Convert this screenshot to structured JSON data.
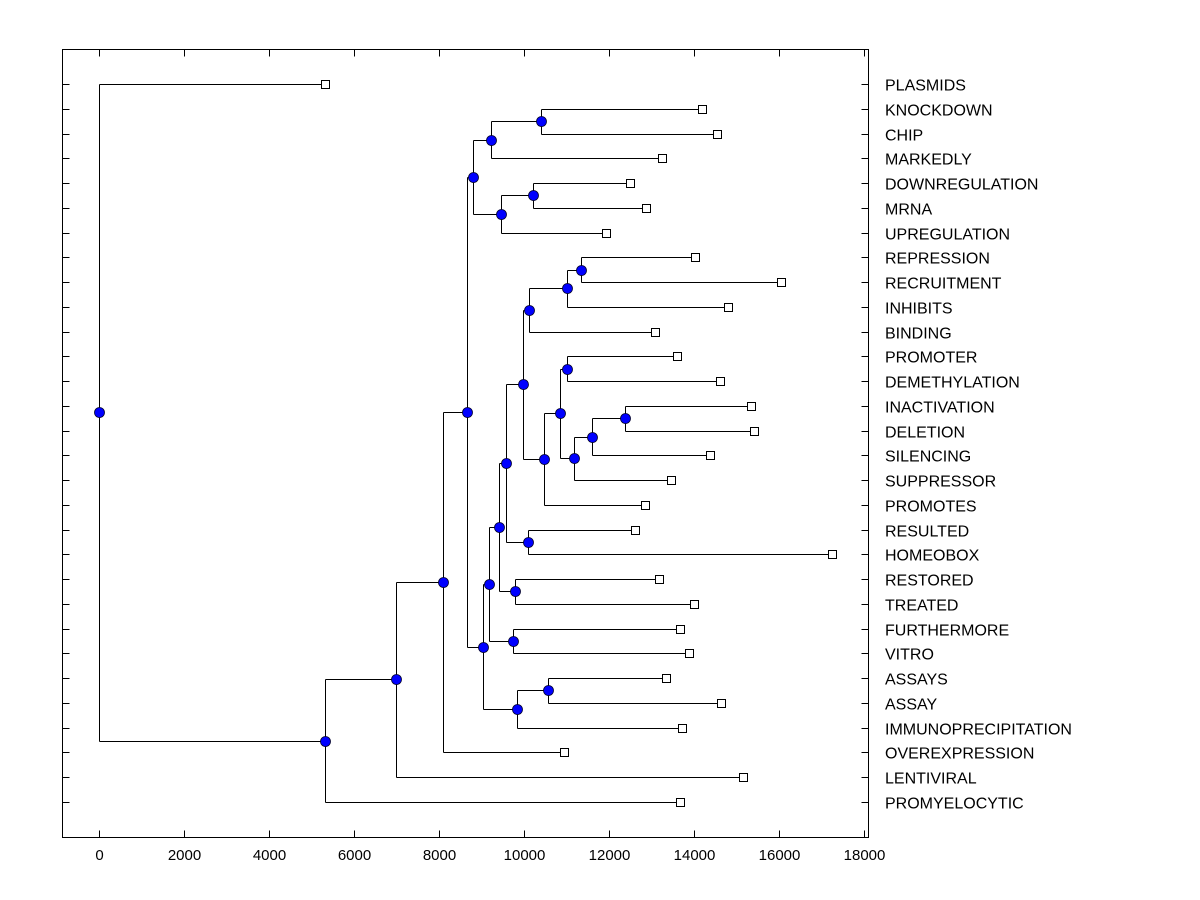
{
  "chart_data": {
    "type": "dendrogram",
    "title": "",
    "xlabel": "",
    "ylabel": "",
    "xlim": [
      -850,
      18100
    ],
    "x_ticks": [
      0,
      2000,
      4000,
      6000,
      8000,
      10000,
      12000,
      14000,
      16000,
      18000
    ],
    "x_tick_labels": [
      "0",
      "2000",
      "4000",
      "6000",
      "8000",
      "10000",
      "12000",
      "14000",
      "16000",
      "18000"
    ],
    "grid": false,
    "leaf_order": [
      "PLASMIDS",
      "KNOCKDOWN",
      "CHIP",
      "MARKEDLY",
      "DOWNREGULATION",
      "MRNA",
      "UPREGULATION",
      "REPRESSION",
      "RECRUITMENT",
      "INHIBITS",
      "BINDING",
      "PROMOTER",
      "DEMETHYLATION",
      "INACTIVATION",
      "DELETION",
      "SILENCING",
      "SUPPRESSOR",
      "PROMOTES",
      "RESULTED",
      "HOMEOBOX",
      "RESTORED",
      "TREATED",
      "FURTHERMORE",
      "VITRO",
      "ASSAYS",
      "ASSAY",
      "IMMUNOPRECIPITATION",
      "OVEREXPRESSION",
      "LENTIVIRAL",
      "PROMYELOCYTIC"
    ],
    "node_color": "#0000ff",
    "leaf_marker_color": "#ffffff",
    "line_color": "#000000",
    "tree": {
      "x": 0,
      "children": [
        {
          "leaf": "PLASMIDS",
          "x": 5325
        },
        {
          "x": 5325,
          "children": [
            {
              "x": 7000,
              "children": [
                {
                  "x": 8100,
                  "children": [
                    {
                      "x": 8665,
                      "children": [
                        {
                          "x": 8805,
                          "children": [
                            {
                              "x": 9230,
                              "children": [
                                {
                                  "x": 10405,
                                  "children": [
                                    {
                                      "leaf": "KNOCKDOWN",
                                      "x": 14195
                                    },
                                    {
                                      "leaf": "CHIP",
                                      "x": 14545
                                    }
                                  ]
                                },
                                {
                                  "leaf": "MARKEDLY",
                                  "x": 13255
                                }
                              ]
                            },
                            {
                              "x": 9465,
                              "children": [
                                {
                                  "x": 10215,
                                  "children": [
                                    {
                                      "leaf": "DOWNREGULATION",
                                      "x": 12500
                                    },
                                    {
                                      "leaf": "MRNA",
                                      "x": 12880
                                    }
                                  ]
                                },
                                {
                                  "leaf": "UPREGULATION",
                                  "x": 11935
                                }
                              ]
                            }
                          ]
                        },
                        {
                          "x": 9040,
                          "children": [
                            {
                              "x": 9180,
                              "children": [
                                {
                                  "x": 9420,
                                  "children": [
                                    {
                                      "x": 9585,
                                      "children": [
                                        {
                                          "x": 9985,
                                          "children": [
                                            {
                                              "x": 10125,
                                              "children": [
                                                {
                                                  "x": 11020,
                                                  "children": [
                                                    {
                                                      "x": 11350,
                                                      "children": [
                                                        {
                                                          "leaf": "REPRESSION",
                                                          "x": 14035
                                                        },
                                                        {
                                                          "leaf": "RECRUITMENT",
                                                          "x": 16055
                                                        }
                                                      ]
                                                    },
                                                    {
                                                      "leaf": "INHIBITS",
                                                      "x": 14810
                                                    }
                                                  ]
                                                },
                                                {
                                                  "leaf": "BINDING",
                                                  "x": 13090
                                                }
                                              ]
                                            },
                                            {
                                              "x": 10480,
                                              "children": [
                                                {
                                                  "x": 10855,
                                                  "children": [
                                                    {
                                                      "x": 11020,
                                                      "children": [
                                                        {
                                                          "leaf": "PROMOTER",
                                                          "x": 13610
                                                        },
                                                        {
                                                          "leaf": "DEMETHYLATION",
                                                          "x": 14620
                                                        }
                                                      ]
                                                    },
                                                    {
                                                      "x": 11185,
                                                      "children": [
                                                        {
                                                          "x": 11605,
                                                          "children": [
                                                            {
                                                              "x": 12385,
                                                              "children": [
                                                                {
                                                                  "leaf": "INACTIVATION",
                                                                  "x": 15350
                                                                },
                                                                {
                                                                  "leaf": "DELETION",
                                                                  "x": 15420
                                                                }
                                                              ]
                                                            },
                                                            {
                                                              "leaf": "SILENCING",
                                                              "x": 14385
                                                            }
                                                          ]
                                                        },
                                                        {
                                                          "leaf": "SUPPRESSOR",
                                                          "x": 13465
                                                        }
                                                      ]
                                                    }
                                                  ]
                                                },
                                                {
                                                  "leaf": "PROMOTES",
                                                  "x": 12855
                                                }
                                              ]
                                            }
                                          ]
                                        },
                                        {
                                          "x": 10100,
                                          "children": [
                                            {
                                              "leaf": "RESULTED",
                                              "x": 12620
                                            },
                                            {
                                              "leaf": "HOMEOBOX",
                                              "x": 17255
                                            }
                                          ]
                                        }
                                      ]
                                    },
                                    {
                                      "x": 9795,
                                      "children": [
                                        {
                                          "leaf": "RESTORED",
                                          "x": 13185
                                        },
                                        {
                                          "leaf": "TREATED",
                                          "x": 14005
                                        }
                                      ]
                                    }
                                  ]
                                },
                                {
                                  "x": 9745,
                                  "children": [
                                    {
                                      "leaf": "FURTHERMORE",
                                      "x": 13680
                                    },
                                    {
                                      "leaf": "VITRO",
                                      "x": 13890
                                    }
                                  ]
                                }
                              ]
                            },
                            {
                              "x": 9840,
                              "children": [
                                {
                                  "x": 10570,
                                  "children": [
                                    {
                                      "leaf": "ASSAYS",
                                      "x": 13355
                                    },
                                    {
                                      "leaf": "ASSAY",
                                      "x": 14645
                                    }
                                  ]
                                },
                                {
                                  "leaf": "IMMUNOPRECIPITATION",
                                  "x": 13725
                                }
                              ]
                            }
                          ]
                        }
                      ]
                    },
                    {
                      "leaf": "OVEREXPRESSION",
                      "x": 10950
                    }
                  ]
                },
                {
                  "leaf": "LENTIVIRAL",
                  "x": 15160
                }
              ]
            },
            {
              "leaf": "PROMYELOCYTIC",
              "x": 13680
            }
          ]
        }
      ]
    }
  }
}
